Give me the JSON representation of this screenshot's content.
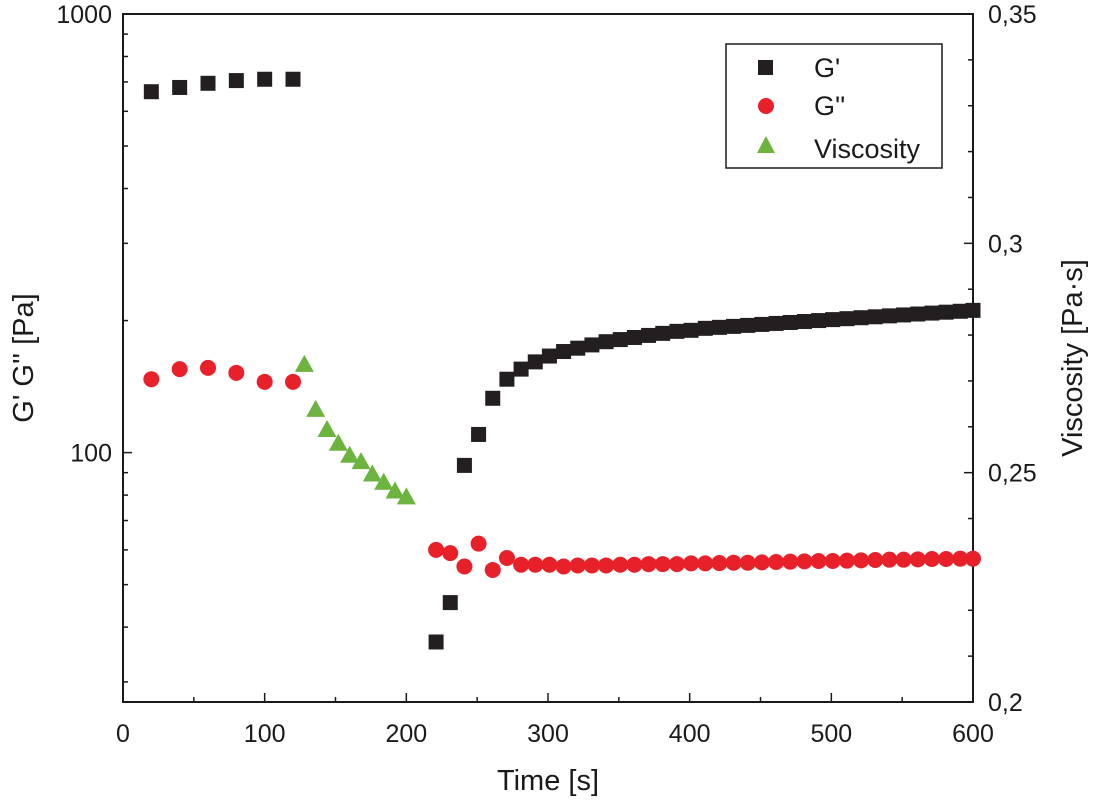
{
  "chart_data": {
    "type": "scatter",
    "title": "",
    "xlabel": "Time [s]",
    "ylabel_left": "G' G'' [Pa]",
    "ylabel_right": "Viscosity [Pa·s]",
    "x_range": [
      0,
      600
    ],
    "y_left_range": [
      27,
      1000
    ],
    "y_left_scale": "log",
    "y_right_range": [
      0.2,
      0.35
    ],
    "y_right_scale": "linear",
    "x_ticks": [
      "0",
      "100",
      "200",
      "300",
      "400",
      "500",
      "600"
    ],
    "y_left_ticks": [
      "100",
      "1000"
    ],
    "y_right_ticks": [
      "0,2",
      "0,25",
      "0,3",
      "0,35"
    ],
    "grid": false,
    "legend_position": "top-right",
    "series": [
      {
        "name": "G'",
        "axis": "left",
        "marker": "square",
        "color": "#231f20",
        "x": [
          20,
          40,
          60,
          80,
          100,
          120,
          221,
          231,
          241,
          251,
          261,
          271,
          281,
          291,
          301,
          311,
          321,
          331,
          341,
          351,
          361,
          371,
          381,
          391,
          401,
          411,
          421,
          431,
          441,
          451,
          461,
          471,
          481,
          491,
          501,
          511,
          521,
          531,
          541,
          551,
          561,
          571,
          581,
          591,
          600
        ],
        "y": [
          665,
          680,
          695,
          705,
          710,
          710,
          37,
          45.5,
          93.5,
          110,
          133,
          147,
          155,
          161,
          166,
          170,
          173,
          176,
          179,
          181,
          183,
          185,
          187,
          189,
          190,
          192,
          193,
          194,
          195,
          196,
          197,
          198,
          199,
          200,
          201,
          202,
          203,
          204,
          205,
          206,
          207,
          208,
          209,
          210,
          211
        ]
      },
      {
        "name": "G''",
        "axis": "left",
        "marker": "circle",
        "color": "#e8202a",
        "x": [
          20,
          40,
          60,
          80,
          100,
          120,
          221,
          231,
          241,
          251,
          261,
          271,
          281,
          291,
          301,
          311,
          321,
          331,
          341,
          351,
          361,
          371,
          381,
          391,
          401,
          411,
          421,
          431,
          441,
          451,
          461,
          471,
          481,
          491,
          501,
          511,
          521,
          531,
          541,
          551,
          561,
          571,
          581,
          591,
          600
        ],
        "y": [
          147,
          155,
          156,
          152,
          145,
          145,
          60,
          59,
          55,
          62,
          54,
          57.5,
          55.5,
          55.5,
          55.5,
          55,
          55.3,
          55.3,
          55.3,
          55.5,
          55.5,
          55.7,
          55.7,
          55.7,
          55.9,
          55.9,
          56,
          56.1,
          56.1,
          56.2,
          56.3,
          56.4,
          56.5,
          56.6,
          56.6,
          56.7,
          56.8,
          56.9,
          57,
          57,
          57.1,
          57.2,
          57.2,
          57.3,
          57.3
        ]
      },
      {
        "name": "Viscosity",
        "axis": "right",
        "marker": "triangle",
        "color": "#6cb33f",
        "x": [
          128,
          136,
          144,
          152,
          160,
          168,
          176,
          184,
          192,
          200
        ],
        "y": [
          0.2735,
          0.2637,
          0.2593,
          0.2563,
          0.2537,
          0.2523,
          0.2496,
          0.2478,
          0.2459,
          0.2446
        ]
      }
    ]
  }
}
